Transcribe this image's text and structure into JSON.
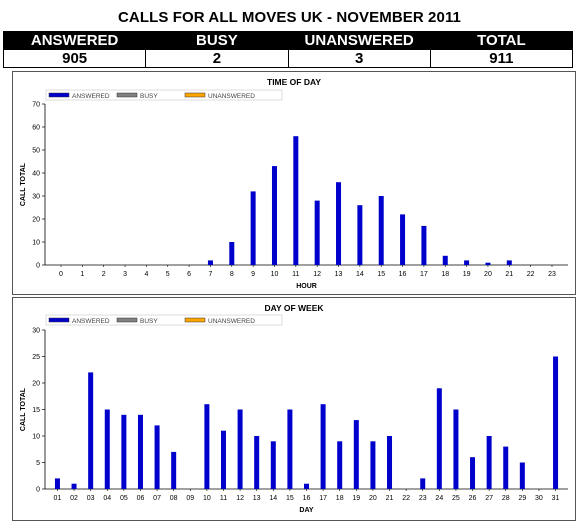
{
  "page": {
    "title": "CALLS FOR ALL MOVES UK - NOVEMBER 2011"
  },
  "summary": {
    "headers": [
      "ANSWERED",
      "BUSY",
      "UNANSWERED",
      "TOTAL"
    ],
    "values": [
      "905",
      "2",
      "3",
      "911"
    ]
  },
  "colors": {
    "answered": "#0000cc",
    "busy": "#808080",
    "unanswered": "#ffa500"
  },
  "chart_data": [
    {
      "type": "bar",
      "title": "TIME OF DAY",
      "xlabel": "HOUR",
      "ylabel": "CALL TOTAL",
      "ylim": [
        0,
        70
      ],
      "yticks": [
        "0",
        "10",
        "20",
        "30",
        "40",
        "50",
        "60",
        "70"
      ],
      "legend": [
        "ANSWERED",
        "BUSY",
        "UNANSWERED"
      ],
      "legend_position": "top-left",
      "grid": false,
      "categories": [
        "0",
        "1",
        "2",
        "3",
        "4",
        "5",
        "6",
        "7",
        "8",
        "9",
        "10",
        "11",
        "12",
        "13",
        "14",
        "15",
        "16",
        "17",
        "18",
        "19",
        "20",
        "21",
        "22",
        "23"
      ],
      "series": [
        {
          "name": "ANSWERED",
          "values": [
            0,
            0,
            0,
            0,
            0,
            0,
            0,
            2,
            10,
            32,
            43,
            56,
            28,
            36,
            26,
            30,
            22,
            17,
            4,
            2,
            1,
            2,
            0,
            0
          ]
        },
        {
          "name": "BUSY",
          "values": [
            0,
            0,
            0,
            0,
            0,
            0,
            0,
            0,
            0,
            0,
            0,
            0,
            0,
            0,
            0,
            0,
            0,
            0,
            0,
            0,
            0,
            0,
            0,
            0
          ]
        },
        {
          "name": "UNANSWERED",
          "values": [
            0,
            0,
            0,
            0,
            0,
            0,
            0,
            0,
            0,
            0,
            0,
            0,
            0,
            0,
            0,
            0,
            0,
            0,
            0,
            0,
            0,
            0,
            0,
            0
          ]
        }
      ]
    },
    {
      "type": "bar",
      "title": "DAY OF WEEK",
      "xlabel": "DAY",
      "ylabel": "CALL TOTAL",
      "ylim": [
        0,
        30
      ],
      "yticks": [
        "0",
        "5",
        "10",
        "15",
        "20",
        "25",
        "30"
      ],
      "legend": [
        "ANSWERED",
        "BUSY",
        "UNANSWERED"
      ],
      "legend_position": "top-left",
      "grid": false,
      "categories": [
        "01",
        "02",
        "03",
        "04",
        "05",
        "06",
        "07",
        "08",
        "09",
        "10",
        "11",
        "12",
        "13",
        "14",
        "15",
        "16",
        "17",
        "18",
        "19",
        "20",
        "21",
        "22",
        "23",
        "24",
        "25",
        "26",
        "27",
        "28",
        "29",
        "30",
        "31"
      ],
      "series": [
        {
          "name": "ANSWERED",
          "values": [
            2,
            1,
            22,
            15,
            14,
            14,
            12,
            7,
            0,
            16,
            11,
            15,
            10,
            9,
            15,
            1,
            16,
            9,
            13,
            9,
            10,
            0,
            2,
            19,
            15,
            6,
            10,
            8,
            5,
            0,
            25
          ]
        },
        {
          "name": "BUSY",
          "values": [
            0,
            0,
            0,
            0,
            0,
            0,
            0,
            0,
            0,
            0,
            0,
            0,
            0,
            0,
            0,
            0,
            0,
            0,
            0,
            0,
            0,
            0,
            0,
            0,
            0,
            0,
            0,
            0,
            0,
            0,
            0
          ]
        },
        {
          "name": "UNANSWERED",
          "values": [
            0,
            0,
            0,
            0,
            0,
            0,
            0,
            0,
            0,
            0,
            0,
            0,
            0,
            0,
            0,
            0,
            0,
            0,
            0,
            0,
            0,
            0,
            0,
            0,
            0,
            0,
            0,
            0,
            0,
            0,
            0
          ]
        }
      ]
    }
  ]
}
